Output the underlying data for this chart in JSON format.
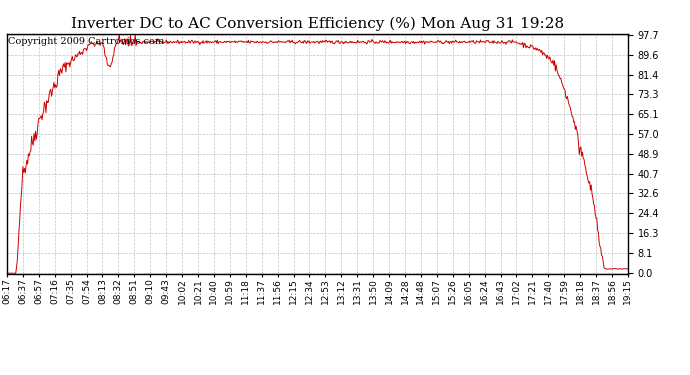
{
  "title": "Inverter DC to AC Conversion Efficiency (%) Mon Aug 31 19:28",
  "copyright_text": "Copyright 2009 Cartronics.com",
  "background_color": "#ffffff",
  "plot_bg_color": "#ffffff",
  "line_color": "#cc0000",
  "grid_color": "#bbbbbb",
  "y_ticks": [
    0.0,
    8.1,
    16.3,
    24.4,
    32.6,
    40.7,
    48.9,
    57.0,
    65.1,
    73.3,
    81.4,
    89.6,
    97.7
  ],
  "x_tick_labels": [
    "06:17",
    "06:37",
    "06:57",
    "07:16",
    "07:35",
    "07:54",
    "08:13",
    "08:32",
    "08:51",
    "09:10",
    "09:43",
    "10:02",
    "10:21",
    "10:40",
    "10:59",
    "11:18",
    "11:37",
    "11:56",
    "12:15",
    "12:34",
    "12:53",
    "13:12",
    "13:31",
    "13:50",
    "14:09",
    "14:28",
    "14:48",
    "15:07",
    "15:26",
    "16:05",
    "16:24",
    "16:43",
    "17:02",
    "17:21",
    "17:40",
    "17:59",
    "18:18",
    "18:37",
    "18:56",
    "19:15"
  ],
  "ymin": 0.0,
  "ymax": 97.7,
  "title_fontsize": 11,
  "tick_fontsize": 7,
  "copyright_fontsize": 7
}
